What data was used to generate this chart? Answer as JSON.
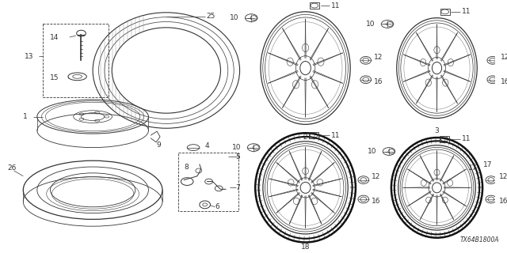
{
  "background_color": "#ffffff",
  "fig_width": 6.4,
  "fig_height": 3.2,
  "dpi": 100,
  "watermark": "TX64B1800A",
  "line_color": "#333333",
  "light_color": "#888888"
}
